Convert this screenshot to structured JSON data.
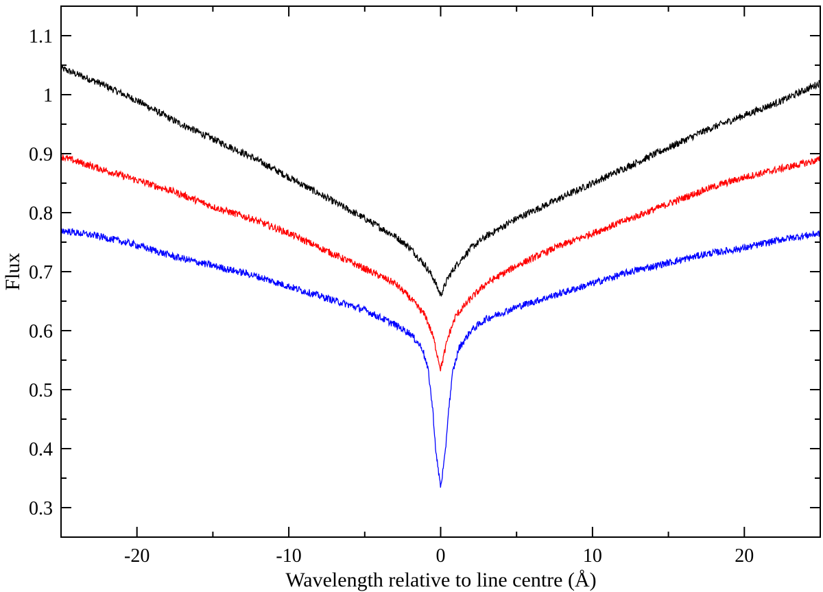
{
  "chart_data": {
    "type": "line",
    "title": "",
    "xlabel": "Wavelength relative to line centre (Å)",
    "ylabel": "Flux",
    "xlim": [
      -25,
      25
    ],
    "ylim": [
      0.25,
      1.15
    ],
    "grid": false,
    "legend": "none",
    "xticks_major": [
      -20,
      -10,
      0,
      10,
      20
    ],
    "xtick_labels": [
      "-20",
      "-10",
      "0",
      "10",
      "20"
    ],
    "yticks_major": [
      0.3,
      0.4,
      0.5,
      0.6,
      0.7,
      0.8,
      0.9,
      1.0,
      1.1
    ],
    "ytick_labels": [
      "0.3",
      "0.4",
      "0.5",
      "0.6",
      "0.7",
      "0.8",
      "0.9",
      "1",
      "1.1"
    ],
    "series": [
      {
        "color": "#000000",
        "x": [
          -25,
          -22.5,
          -20,
          -17.5,
          -15,
          -12.5,
          -10,
          -7.5,
          -5,
          -3,
          -2,
          -1,
          -0.5,
          0,
          0.5,
          1,
          2,
          3,
          5,
          7.5,
          10,
          12.5,
          15,
          17.5,
          20,
          22.5,
          25
        ],
        "y": [
          1.045,
          1.02,
          0.99,
          0.955,
          0.925,
          0.895,
          0.86,
          0.825,
          0.79,
          0.76,
          0.74,
          0.71,
          0.69,
          0.66,
          0.69,
          0.71,
          0.74,
          0.76,
          0.79,
          0.82,
          0.85,
          0.88,
          0.91,
          0.94,
          0.965,
          0.99,
          1.02
        ]
      },
      {
        "color": "#ff0000",
        "x": [
          -25,
          -22.5,
          -20,
          -17.5,
          -15,
          -12.5,
          -10,
          -7.5,
          -5,
          -3,
          -2,
          -1,
          -0.5,
          0,
          0.5,
          1,
          2,
          3,
          5,
          7.5,
          10,
          12.5,
          15,
          17.5,
          20,
          22.5,
          25
        ],
        "y": [
          0.895,
          0.875,
          0.855,
          0.835,
          0.81,
          0.79,
          0.765,
          0.735,
          0.705,
          0.68,
          0.655,
          0.625,
          0.59,
          0.535,
          0.59,
          0.625,
          0.655,
          0.68,
          0.71,
          0.74,
          0.765,
          0.79,
          0.815,
          0.84,
          0.86,
          0.875,
          0.89
        ]
      },
      {
        "color": "#0000ff",
        "x": [
          -25,
          -22.5,
          -20,
          -17.5,
          -15,
          -12.5,
          -10,
          -7.5,
          -5,
          -3,
          -2,
          -1.2,
          -0.8,
          -0.5,
          -0.3,
          0,
          0.3,
          0.5,
          0.8,
          1.2,
          2,
          3,
          5,
          7.5,
          10,
          12.5,
          15,
          17.5,
          20,
          22.5,
          25
        ],
        "y": [
          0.77,
          0.76,
          0.745,
          0.725,
          0.71,
          0.695,
          0.675,
          0.655,
          0.635,
          0.61,
          0.595,
          0.57,
          0.53,
          0.46,
          0.39,
          0.335,
          0.39,
          0.46,
          0.53,
          0.57,
          0.6,
          0.62,
          0.64,
          0.66,
          0.68,
          0.7,
          0.715,
          0.73,
          0.74,
          0.755,
          0.765
        ]
      }
    ]
  }
}
